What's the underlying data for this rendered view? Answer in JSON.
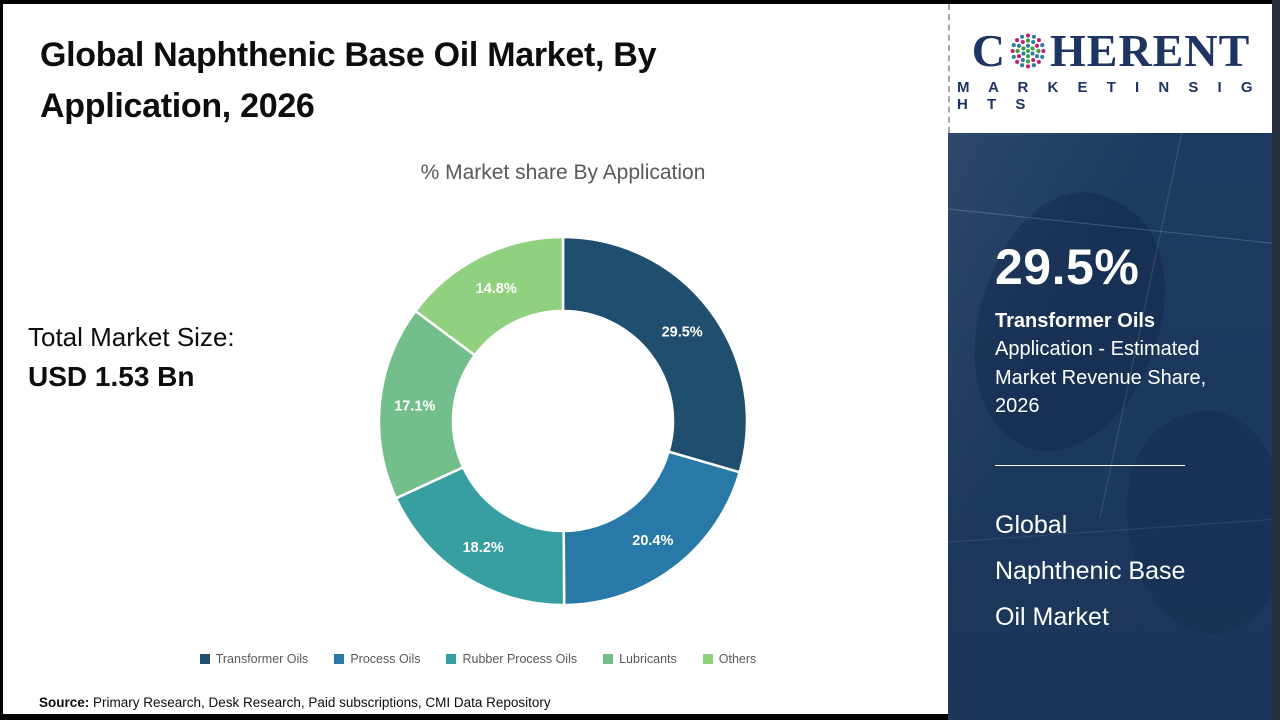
{
  "header": {
    "title_lines": [
      "Global Naphthenic Base Oil Market, By",
      "Application, 2026"
    ]
  },
  "total_market": {
    "label": "Total Market Size:",
    "value": "USD 1.53 Bn"
  },
  "chart_data": {
    "type": "pie",
    "subtype": "donut",
    "title": "% Market share By Application",
    "categories": [
      "Transformer Oils",
      "Process Oils",
      "Rubber Process Oils",
      "Lubricants",
      "Others"
    ],
    "values": [
      29.5,
      20.4,
      18.2,
      17.1,
      14.8
    ],
    "labels": [
      "29.5%",
      "20.4%",
      "18.2%",
      "17.1%",
      "14.8%"
    ],
    "colors": [
      "#1f4e6e",
      "#2878a8",
      "#379fa2",
      "#73bf8b",
      "#8fd17e"
    ],
    "start_angle_deg": 0,
    "direction": "clockwise",
    "legend_position": "bottom",
    "label_color": "#ffffff"
  },
  "source": {
    "label": "Source:",
    "text": " Primary Research, Desk Research, Paid subscriptions, CMI Data Repository"
  },
  "sidebar": {
    "logo": {
      "brand_c": "C",
      "brand_rest": "HERENT",
      "tagline": "M A R K E T   I N S I G H T S",
      "brand_color": "#1e3563",
      "globe": {
        "size": 42,
        "dot_r": 2.05,
        "rings": [
          {
            "r": 0,
            "n": 1,
            "colors": [
              "#3aa03c"
            ]
          },
          {
            "r": 5.2,
            "n": 6,
            "colors": [
              "#2e7f9f",
              "#3aa03c"
            ]
          },
          {
            "r": 10.4,
            "n": 12,
            "colors": [
              "#3aa03c",
              "#2e7f9f",
              "#c2207c"
            ]
          },
          {
            "r": 15.4,
            "n": 16,
            "colors": [
              "#c2207c",
              "#2e7f9f"
            ]
          }
        ]
      }
    },
    "stat_value": "29.5%",
    "stat_segment": "Transformer Oils",
    "stat_desc_lines": [
      "Application - Estimated",
      "Market Revenue Share,",
      "2026"
    ],
    "market_name_lines": [
      "Global",
      "Naphthenic Base",
      "Oil Market"
    ],
    "panel_color": "#1d3a60"
  }
}
